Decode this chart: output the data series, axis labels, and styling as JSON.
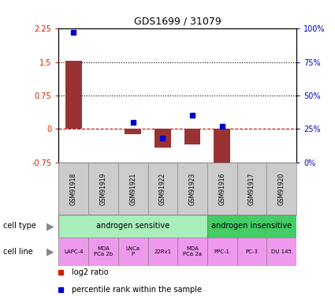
{
  "title": "GDS1699 / 31079",
  "samples": [
    "GSM91918",
    "GSM91919",
    "GSM91921",
    "GSM91922",
    "GSM91923",
    "GSM91916",
    "GSM91917",
    "GSM91920"
  ],
  "log2_ratio": [
    1.52,
    0.0,
    -0.12,
    -0.42,
    -0.35,
    -0.85,
    0.0,
    0.0
  ],
  "percentile_rank": [
    97,
    0,
    30,
    18,
    35,
    27,
    0,
    0
  ],
  "ylim_left": [
    -0.75,
    2.25
  ],
  "ylim_right": [
    0,
    100
  ],
  "yticks_left": [
    -0.75,
    0,
    0.75,
    1.5,
    2.25
  ],
  "yticks_right": [
    0,
    25,
    50,
    75,
    100
  ],
  "ytick_labels_left": [
    "-0.75",
    "0",
    "0.75",
    "1.5",
    "2.25"
  ],
  "ytick_labels_right": [
    "0%",
    "25%",
    "50%",
    "75%",
    "100%"
  ],
  "hlines": [
    1.5,
    0.75
  ],
  "bar_color": "#993333",
  "scatter_color": "#0000cc",
  "zero_line_color": "#cc0000",
  "cell_type_sensitive": "androgen sensitive",
  "cell_type_insensitive": "androgen insensitive",
  "cell_type_sensitive_color": "#aaeebb",
  "cell_type_insensitive_color": "#44cc66",
  "cell_line_color": "#ee99ee",
  "cell_lines": [
    "LAPC-4",
    "MDA\nPCa 2b",
    "LNCa\nP",
    "22Rv1",
    "MDA\nPCa 2a",
    "PPC-1",
    "PC-3",
    "DU 145"
  ],
  "n_sensitive": 5,
  "n_insensitive": 3,
  "bar_width": 0.55,
  "legend_bar_color": "#cc2200",
  "legend_dot_color": "#0000cc",
  "background_color": "#ffffff",
  "tick_label_color_left": "#cc2200",
  "tick_label_color_right": "#0000cc",
  "sample_box_color": "#cccccc",
  "sample_box_edge": "#888888"
}
